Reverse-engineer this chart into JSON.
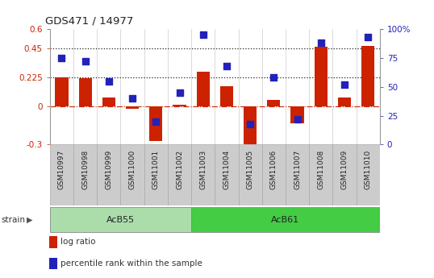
{
  "title": "GDS471 / 14977",
  "samples": [
    "GSM10997",
    "GSM10998",
    "GSM10999",
    "GSM11000",
    "GSM11001",
    "GSM11002",
    "GSM11003",
    "GSM11004",
    "GSM11005",
    "GSM11006",
    "GSM11007",
    "GSM11008",
    "GSM11009",
    "GSM11010"
  ],
  "log_ratio": [
    0.225,
    0.215,
    0.07,
    -0.02,
    -0.275,
    0.01,
    0.27,
    0.155,
    -0.32,
    0.05,
    -0.135,
    0.46,
    0.07,
    0.47
  ],
  "percentile": [
    75,
    72,
    55,
    40,
    20,
    45,
    95,
    68,
    18,
    58,
    22,
    88,
    52,
    93
  ],
  "ylim_left": [
    -0.3,
    0.6
  ],
  "ylim_right": [
    0,
    100
  ],
  "yticks_left": [
    -0.3,
    0,
    0.225,
    0.45,
    0.6
  ],
  "yticks_right": [
    0,
    25,
    50,
    75,
    100
  ],
  "ytick_labels_left": [
    "-0.3",
    "0",
    "0.225",
    "0.45",
    "0.6"
  ],
  "ytick_labels_right": [
    "0",
    "25",
    "50",
    "75",
    "100%"
  ],
  "hlines_dotted": [
    0.45,
    0.225
  ],
  "zero_line_color": "#cc2200",
  "zero_line_style": "-.",
  "hline_color": "#222222",
  "hline_style": ":",
  "strain_groups": [
    {
      "label": "AcB55",
      "start": 0,
      "end": 5,
      "color": "#aaddaa"
    },
    {
      "label": "AcB61",
      "start": 6,
      "end": 13,
      "color": "#44cc44"
    }
  ],
  "strain_label": "strain",
  "legend_items": [
    {
      "label": "log ratio",
      "color": "#cc2200"
    },
    {
      "label": "percentile rank within the sample",
      "color": "#2222bb"
    }
  ],
  "bar_width": 0.55,
  "dot_size": 35,
  "bg_color": "#ffffff",
  "plot_bg": "#ffffff",
  "tick_color_left": "#cc2200",
  "tick_color_right": "#2222bb",
  "bar_color": "#cc2200",
  "dot_color": "#2222bb",
  "grid_color": "#cccccc",
  "xlabel_bg": "#cccccc",
  "strain_bg": "#cccccc"
}
